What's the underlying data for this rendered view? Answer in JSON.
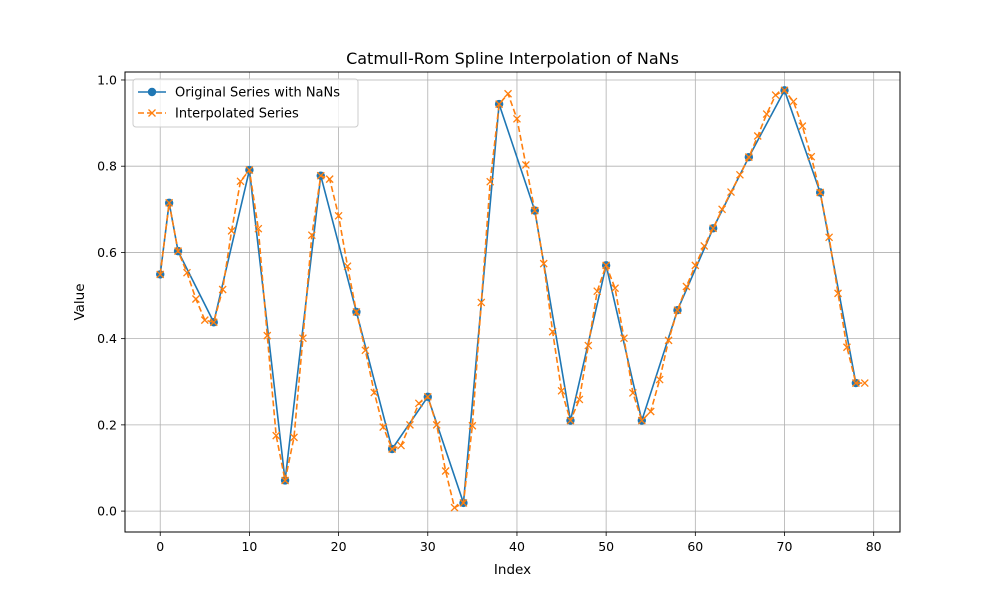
{
  "chart_data": {
    "type": "line",
    "title": "Catmull-Rom Spline Interpolation of NaNs",
    "xlabel": "Index",
    "ylabel": "Value",
    "xlim": [
      -3.95,
      82.95
    ],
    "ylim": [
      -0.0485,
      1.0185
    ],
    "xticks": [
      0,
      10,
      20,
      30,
      40,
      50,
      60,
      70,
      80
    ],
    "yticks": [
      0.0,
      0.2,
      0.4,
      0.6,
      0.8,
      1.0
    ],
    "xtick_labels": [
      "0",
      "10",
      "20",
      "30",
      "40",
      "50",
      "60",
      "70",
      "80"
    ],
    "ytick_labels": [
      "0.0",
      "0.2",
      "0.4",
      "0.6",
      "0.8",
      "1.0"
    ],
    "grid": true,
    "legend_position": "upper-left",
    "series": [
      {
        "name": "Original Series with NaNs",
        "color": "#1f77b4",
        "line_style": "solid",
        "marker": "circle",
        "points": [
          [
            0,
            0.549
          ],
          [
            1,
            0.715
          ],
          [
            2,
            0.603
          ],
          [
            6,
            0.438
          ],
          [
            10,
            0.791
          ],
          [
            14,
            0.071
          ],
          [
            18,
            0.778
          ],
          [
            22,
            0.462
          ],
          [
            26,
            0.144
          ],
          [
            30,
            0.265
          ],
          [
            34,
            0.019
          ],
          [
            38,
            0.944
          ],
          [
            42,
            0.697
          ],
          [
            46,
            0.21
          ],
          [
            50,
            0.57
          ],
          [
            54,
            0.21
          ],
          [
            58,
            0.466
          ],
          [
            62,
            0.656
          ],
          [
            66,
            0.821
          ],
          [
            70,
            0.976
          ],
          [
            74,
            0.739
          ],
          [
            78,
            0.297
          ]
        ]
      },
      {
        "name": "Interpolated Series",
        "color": "#ff7f0e",
        "line_style": "dashed",
        "marker": "x",
        "points": [
          [
            0,
            0.549
          ],
          [
            1,
            0.715
          ],
          [
            2,
            0.603
          ],
          [
            3,
            0.553
          ],
          [
            4,
            0.492
          ],
          [
            5,
            0.443
          ],
          [
            6,
            0.438
          ],
          [
            7,
            0.514
          ],
          [
            8,
            0.65
          ],
          [
            9,
            0.765
          ],
          [
            10,
            0.791
          ],
          [
            11,
            0.655
          ],
          [
            12,
            0.407
          ],
          [
            13,
            0.175
          ],
          [
            14,
            0.071
          ],
          [
            15,
            0.171
          ],
          [
            16,
            0.401
          ],
          [
            17,
            0.64
          ],
          [
            18,
            0.778
          ],
          [
            19,
            0.77
          ],
          [
            20,
            0.685
          ],
          [
            21,
            0.568
          ],
          [
            22,
            0.462
          ],
          [
            23,
            0.373
          ],
          [
            24,
            0.275
          ],
          [
            25,
            0.195
          ],
          [
            26,
            0.144
          ],
          [
            27,
            0.152
          ],
          [
            28,
            0.2
          ],
          [
            29,
            0.25
          ],
          [
            30,
            0.265
          ],
          [
            31,
            0.2
          ],
          [
            32,
            0.093
          ],
          [
            33,
            0.008
          ],
          [
            34,
            0.019
          ],
          [
            35,
            0.198
          ],
          [
            36,
            0.484
          ],
          [
            37,
            0.764
          ],
          [
            38,
            0.944
          ],
          [
            39,
            0.968
          ],
          [
            40,
            0.91
          ],
          [
            41,
            0.803
          ],
          [
            42,
            0.697
          ],
          [
            43,
            0.574
          ],
          [
            44,
            0.416
          ],
          [
            45,
            0.279
          ],
          [
            46,
            0.21
          ],
          [
            47,
            0.259
          ],
          [
            48,
            0.384
          ],
          [
            49,
            0.51
          ],
          [
            50,
            0.57
          ],
          [
            51,
            0.517
          ],
          [
            52,
            0.401
          ],
          [
            53,
            0.274
          ],
          [
            54,
            0.21
          ],
          [
            55,
            0.231
          ],
          [
            56,
            0.305
          ],
          [
            57,
            0.396
          ],
          [
            58,
            0.466
          ],
          [
            59,
            0.521
          ],
          [
            60,
            0.57
          ],
          [
            61,
            0.615
          ],
          [
            62,
            0.656
          ],
          [
            63,
            0.7
          ],
          [
            64,
            0.74
          ],
          [
            65,
            0.78
          ],
          [
            66,
            0.821
          ],
          [
            67,
            0.87
          ],
          [
            68,
            0.921
          ],
          [
            69,
            0.965
          ],
          [
            70,
            0.976
          ],
          [
            71,
            0.95
          ],
          [
            72,
            0.893
          ],
          [
            73,
            0.822
          ],
          [
            74,
            0.739
          ],
          [
            75,
            0.635
          ],
          [
            76,
            0.505
          ],
          [
            77,
            0.38
          ],
          [
            78,
            0.297
          ],
          [
            79,
            0.297
          ]
        ]
      }
    ]
  }
}
